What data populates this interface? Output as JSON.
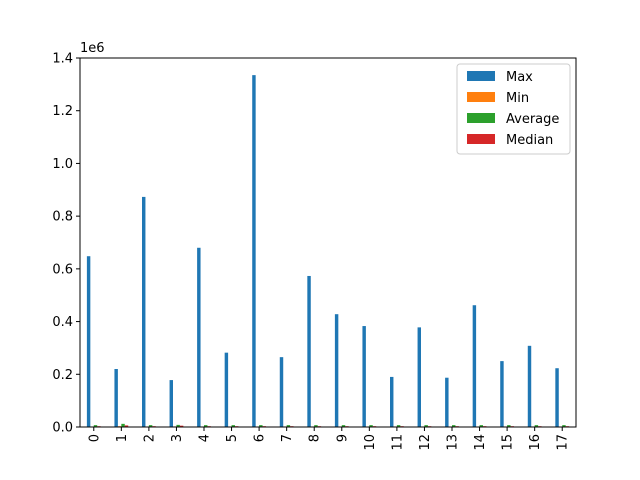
{
  "chart_data": {
    "type": "bar",
    "title": "",
    "xlabel": "",
    "ylabel": "",
    "offset_text": "1e6",
    "categories": [
      "0",
      "1",
      "2",
      "3",
      "4",
      "5",
      "6",
      "7",
      "8",
      "9",
      "10",
      "11",
      "12",
      "13",
      "14",
      "15",
      "16",
      "17"
    ],
    "ylim": [
      0,
      1400000
    ],
    "yticks": [
      0,
      200000,
      400000,
      600000,
      800000,
      1000000,
      1200000,
      1400000
    ],
    "ytick_labels": [
      "0.0",
      "0.2",
      "0.4",
      "0.6",
      "0.8",
      "1.0",
      "1.2",
      "1.4"
    ],
    "grid": false,
    "legend_position": "top-right",
    "series": [
      {
        "name": "Max",
        "color": "#1f77b4",
        "values": [
          648000,
          220000,
          873000,
          178000,
          680000,
          282000,
          1335000,
          265000,
          573000,
          428000,
          383000,
          190000,
          378000,
          187000,
          462000,
          250000,
          308000,
          223000
        ]
      },
      {
        "name": "Min",
        "color": "#ff7f0e",
        "values": [
          500,
          3000,
          500,
          2000,
          500,
          500,
          500,
          500,
          500,
          500,
          500,
          500,
          500,
          500,
          500,
          500,
          500,
          500
        ]
      },
      {
        "name": "Average",
        "color": "#2ca02c",
        "values": [
          7000,
          12000,
          7000,
          8000,
          7000,
          7000,
          7000,
          7000,
          7000,
          7000,
          7000,
          7000,
          7000,
          7000,
          7000,
          7000,
          7000,
          7000
        ]
      },
      {
        "name": "Median",
        "color": "#d62728",
        "values": [
          3000,
          6000,
          3000,
          5000,
          3000,
          3000,
          3000,
          3000,
          3000,
          3000,
          3000,
          3000,
          3000,
          3000,
          3000,
          3000,
          3000,
          3000
        ]
      }
    ]
  }
}
